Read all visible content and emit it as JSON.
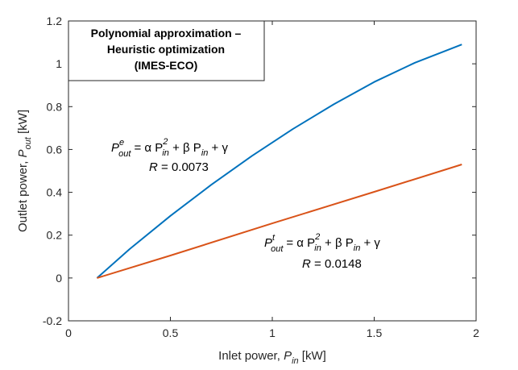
{
  "chart_data": {
    "type": "line",
    "title_lines": [
      "Polynomial approximation –",
      "Heuristic optimization",
      "(IMES-ECO)"
    ],
    "xlabel": {
      "text": "Inlet power, ",
      "var": "P",
      "sub": "in",
      "unit": " [kW]"
    },
    "ylabel": {
      "text": "Outlet power, ",
      "var": "P",
      "sub": "out",
      "unit": " [kW]"
    },
    "xlim": [
      0,
      2
    ],
    "ylim": [
      -0.2,
      1.2
    ],
    "xticks": [
      0,
      0.5,
      1,
      1.5,
      2
    ],
    "xtick_labels": [
      "0",
      "0.5",
      "1",
      "1.5",
      "2"
    ],
    "yticks": [
      -0.2,
      0,
      0.2,
      0.4,
      0.6,
      0.8,
      1,
      1.2
    ],
    "ytick_labels": [
      "-0.2",
      "0",
      "0.2",
      "0.4",
      "0.6",
      "0.8",
      "1",
      "1.2"
    ],
    "grid": false,
    "series": [
      {
        "color": "#0072BD",
        "x": [
          0.14,
          0.3,
          0.5,
          0.7,
          0.9,
          1.1,
          1.3,
          1.5,
          1.7,
          1.93
        ],
        "y": [
          0.0,
          0.135,
          0.29,
          0.435,
          0.57,
          0.695,
          0.81,
          0.915,
          1.005,
          1.09
        ]
      },
      {
        "color": "#D95319",
        "x": [
          0.14,
          0.5,
          1.0,
          1.5,
          1.93
        ],
        "y": [
          0.0,
          0.105,
          0.255,
          0.402,
          0.53
        ]
      }
    ],
    "annotations": [
      {
        "name": "electric-efficiency-equation",
        "sup": "e",
        "formula": [
          "P",
          "out",
          "e",
          "= α P",
          "in",
          "2",
          " + β  P",
          "in",
          " + γ"
        ],
        "r_label": "R",
        "r_value": " = 0.0073"
      },
      {
        "name": "thermal-efficiency-equation",
        "sup": "t",
        "formula": [
          "P",
          "out",
          "t",
          "= α P",
          "in",
          "2",
          " + β  P",
          "in",
          " + γ"
        ],
        "r_label": "R",
        "r_value": " = 0.0148"
      }
    ]
  }
}
